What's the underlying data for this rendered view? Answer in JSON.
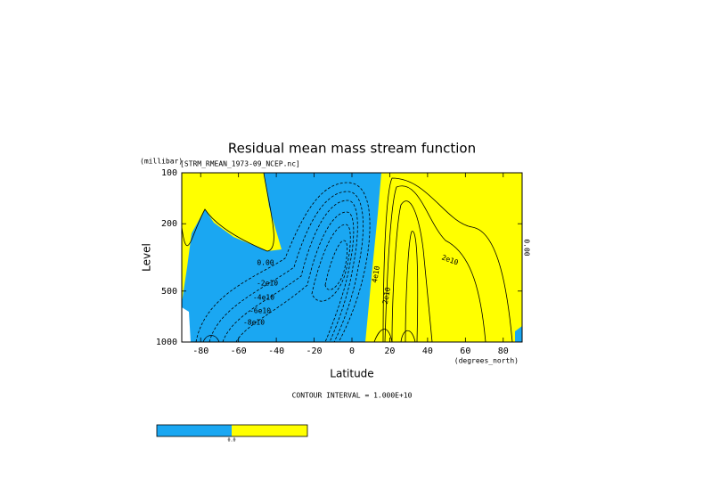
{
  "chart_data": {
    "type": "contour",
    "title": "Residual mean mass stream function",
    "subtitle": "[STRM_RMEAN_1973-09_NCEP.nc]",
    "x_label": "Latitude",
    "x_units": "(degrees_north)",
    "y_label": "Level",
    "y_units": "(millibar)",
    "xlim": [
      -90,
      90
    ],
    "xticks": [
      -80,
      -60,
      -40,
      -20,
      0,
      20,
      40,
      60,
      80
    ],
    "ylim": [
      1000,
      100
    ],
    "yticks": [
      100,
      200,
      500,
      1000
    ],
    "y_log": true,
    "y_inverted": true,
    "contour_labels": [
      "0.00",
      "-2e10",
      "-4e10",
      "-6e10",
      "-8e10",
      "2e10",
      "4e10",
      "2e10",
      "0.00"
    ],
    "contour_interval": "CONTOUR INTERVAL = 1.000E+10",
    "fill_colors": [
      "#1aa7f2",
      "#ffff00"
    ],
    "colorbar_label": "0.0"
  }
}
